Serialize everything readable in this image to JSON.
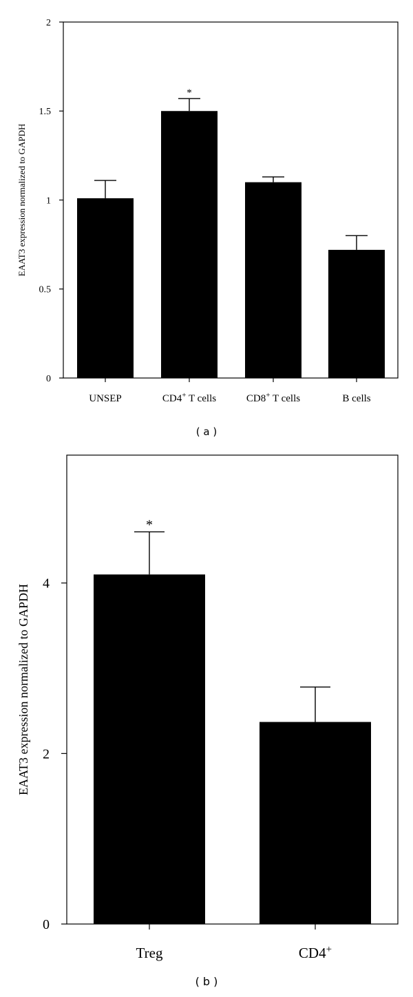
{
  "chart_data": [
    {
      "type": "bar",
      "panel_label": "( a )",
      "ylabel": "EAAT3 expression normalized to GAPDH",
      "xlabel": "",
      "ylim": [
        0,
        2
      ],
      "yticks": [
        "0",
        "0.5",
        "1",
        "1.5",
        "2"
      ],
      "ytick_values": [
        0,
        0.5,
        1,
        1.5,
        2
      ],
      "categories": [
        {
          "main": "UNSEP",
          "sup": "",
          "rest": ""
        },
        {
          "main": "CD4",
          "sup": "+",
          "rest": " T cells"
        },
        {
          "main": "CD8",
          "sup": "+",
          "rest": " T cells"
        },
        {
          "main": "B cells",
          "sup": "",
          "rest": ""
        }
      ],
      "values": [
        1.01,
        1.5,
        1.1,
        0.72
      ],
      "errors": [
        0.1,
        0.07,
        0.03,
        0.08
      ],
      "annotations": [
        "",
        "*",
        "",
        ""
      ],
      "colors": {
        "bar": "#000000"
      }
    },
    {
      "type": "bar",
      "panel_label": "( b )",
      "ylabel": "EAAT3 expression normalized to GAPDH",
      "xlabel": "",
      "ylim": [
        0,
        5.5
      ],
      "yticks": [
        "0",
        "2",
        "4"
      ],
      "ytick_values": [
        0,
        2,
        4
      ],
      "categories": [
        {
          "main": "Treg",
          "sup": "",
          "rest": ""
        },
        {
          "main": "CD4",
          "sup": "+",
          "rest": ""
        }
      ],
      "values": [
        4.1,
        2.37
      ],
      "errors": [
        0.5,
        0.41
      ],
      "annotations": [
        "*",
        ""
      ],
      "colors": {
        "bar": "#000000"
      }
    }
  ]
}
